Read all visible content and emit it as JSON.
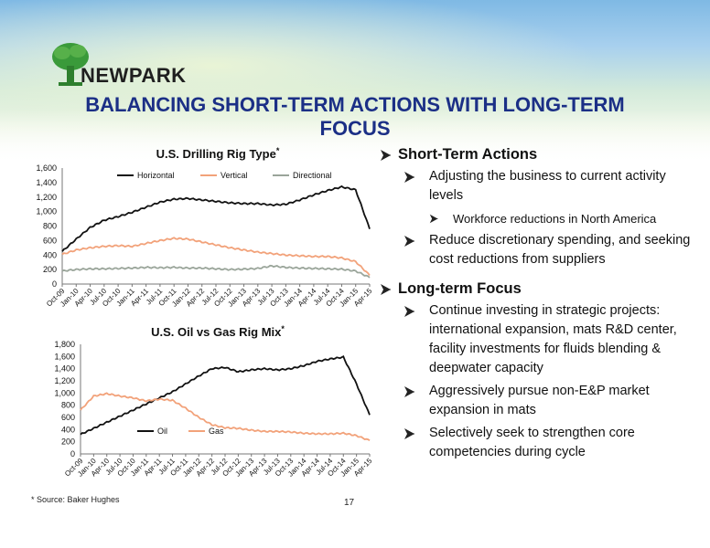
{
  "brand": "NEWPARK",
  "title": {
    "line1": "BALANCING SHORT-TERM ACTIONS WITH LONG-TERM",
    "line2": "FOCUS"
  },
  "colors": {
    "title": "#1b2f86",
    "horizontal": "#111111",
    "vertical": "#f2a27a",
    "directional": "#9aa59a",
    "oil": "#111111",
    "gas": "#f2a27a"
  },
  "chart_data": [
    {
      "type": "line",
      "title": "U.S. Drilling Rig Type",
      "title_marker": "*",
      "ylim": [
        0,
        1600
      ],
      "yticks": [
        "0",
        "200",
        "400",
        "600",
        "800",
        "1,000",
        "1,200",
        "1,400",
        "1,600"
      ],
      "xticks": [
        "Oct-09",
        "Jan-10",
        "Apr-10",
        "Jul-10",
        "Oct-10",
        "Jan-11",
        "Apr-11",
        "Jul-11",
        "Oct-11",
        "Jan-12",
        "Apr-12",
        "Jul-12",
        "Oct-12",
        "Jan-13",
        "Apr-13",
        "Jul-13",
        "Oct-13",
        "Jan-14",
        "Apr-14",
        "Jul-14",
        "Oct-14",
        "Jan-15",
        "Apr-15"
      ],
      "legend": "top",
      "series": [
        {
          "name": "Horizontal",
          "color": "#111111",
          "values": [
            450,
            620,
            780,
            880,
            930,
            990,
            1060,
            1130,
            1170,
            1180,
            1160,
            1140,
            1120,
            1110,
            1110,
            1090,
            1100,
            1160,
            1230,
            1290,
            1340,
            1300,
            760
          ]
        },
        {
          "name": "Vertical",
          "color": "#f2a27a",
          "values": [
            410,
            470,
            500,
            520,
            530,
            520,
            560,
            600,
            630,
            620,
            580,
            540,
            500,
            470,
            440,
            420,
            400,
            390,
            380,
            380,
            360,
            310,
            120
          ]
        },
        {
          "name": "Directional",
          "color": "#9aa59a",
          "values": [
            180,
            200,
            210,
            210,
            215,
            220,
            230,
            225,
            230,
            220,
            220,
            210,
            200,
            205,
            215,
            250,
            230,
            220,
            215,
            210,
            205,
            180,
            90
          ]
        }
      ]
    },
    {
      "type": "line",
      "title": "U.S. Oil vs Gas Rig Mix",
      "title_marker": "*",
      "ylim": [
        0,
        1800
      ],
      "yticks": [
        "0",
        "200",
        "400",
        "600",
        "800",
        "1,000",
        "1,200",
        "1,400",
        "1,600",
        "1,800"
      ],
      "xticks": [
        "Oct-09",
        "Jan-10",
        "Apr-10",
        "Jul-10",
        "Oct-10",
        "Jan-11",
        "Apr-11",
        "Jul-11",
        "Oct-11",
        "Jan-12",
        "Apr-12",
        "Jul-12",
        "Oct-12",
        "Jan-13",
        "Apr-13",
        "Jul-13",
        "Oct-13",
        "Jan-14",
        "Apr-14",
        "Jul-14",
        "Oct-14",
        "Jan-15",
        "Apr-15"
      ],
      "legend": "bottom-left",
      "series": [
        {
          "name": "Oil",
          "color": "#111111",
          "values": [
            320,
            420,
            520,
            620,
            720,
            820,
            920,
            1020,
            1150,
            1280,
            1400,
            1420,
            1350,
            1380,
            1400,
            1380,
            1400,
            1450,
            1520,
            1560,
            1590,
            1150,
            640
          ]
        },
        {
          "name": "Gas",
          "color": "#f2a27a",
          "values": [
            720,
            950,
            990,
            950,
            920,
            870,
            900,
            880,
            750,
            600,
            480,
            430,
            420,
            390,
            370,
            370,
            360,
            340,
            330,
            330,
            340,
            300,
            220
          ]
        }
      ]
    }
  ],
  "footnote": "* Source:  Baker Hughes",
  "page_number": "17",
  "bullets": {
    "short_term": {
      "heading": "Short-Term Actions",
      "items": [
        {
          "text": "Adjusting the business to current activity levels",
          "sub": [
            "Workforce reductions in North America"
          ]
        },
        {
          "text": "Reduce discretionary spending, and seeking cost reductions from suppliers",
          "sub": []
        }
      ]
    },
    "long_term": {
      "heading": "Long-term Focus",
      "items": [
        {
          "text": "Continue investing in strategic projects: international expansion, mats R&D center, facility investments for fluids blending & deepwater capacity"
        },
        {
          "text": "Aggressively pursue non-E&P market expansion in mats"
        },
        {
          "text": "Selectively seek to strengthen core competencies during cycle"
        }
      ]
    }
  }
}
